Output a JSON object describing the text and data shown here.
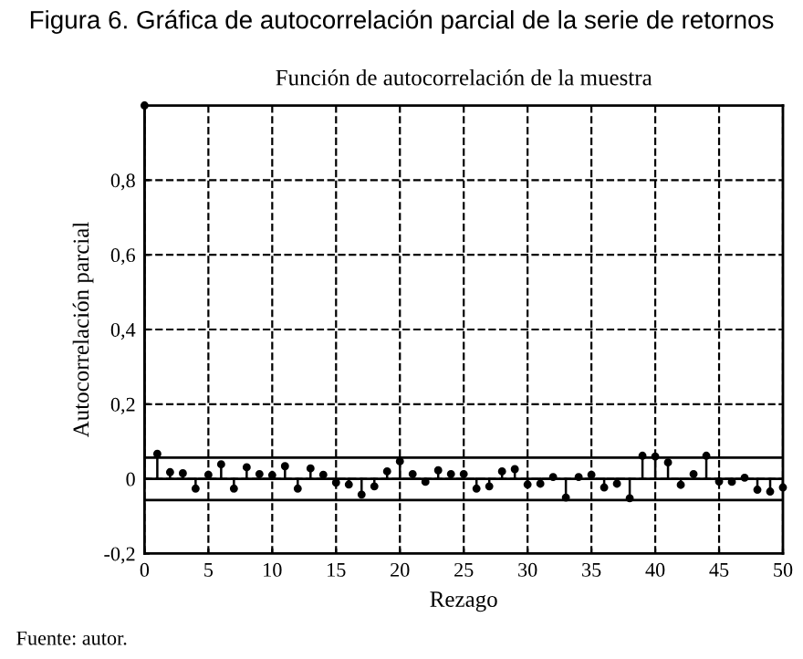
{
  "chart_data": {
    "type": "lollipop",
    "title": "Figura 6. Gráfica de autocorrelación parcial de la serie de retornos",
    "subtitle": "Función de autocorrelación de la muestra",
    "xlabel": "Rezago",
    "ylabel": "Autocorrelación parcial",
    "x": [
      0,
      1,
      2,
      3,
      4,
      5,
      6,
      7,
      8,
      9,
      10,
      11,
      12,
      13,
      14,
      15,
      16,
      17,
      18,
      19,
      20,
      21,
      22,
      23,
      24,
      25,
      26,
      27,
      28,
      29,
      30,
      31,
      32,
      33,
      34,
      35,
      36,
      37,
      38,
      39,
      40,
      41,
      42,
      43,
      44,
      45,
      46,
      47,
      48,
      49,
      50
    ],
    "values": [
      1,
      0.067,
      0.018,
      0.015,
      -0.026,
      0.011,
      0.039,
      -0.026,
      0.031,
      0.013,
      0.01,
      0.034,
      -0.026,
      0.028,
      0.011,
      -0.01,
      -0.015,
      -0.042,
      -0.02,
      0.02,
      0.047,
      0.013,
      -0.008,
      0.023,
      0.013,
      0.013,
      -0.026,
      -0.02,
      0.02,
      0.026,
      -0.015,
      -0.013,
      0.005,
      -0.05,
      0.005,
      0.011,
      -0.023,
      -0.013,
      -0.052,
      0.062,
      0.06,
      0.044,
      -0.016,
      0.013,
      0.062,
      -0.007,
      -0.008,
      0.003,
      -0.029,
      -0.034,
      -0.023
    ],
    "color": "#000000",
    "marker": "circle",
    "xlim": [
      0,
      50
    ],
    "xticks": [
      0,
      5,
      10,
      15,
      20,
      25,
      30,
      35,
      40,
      45,
      50
    ],
    "ylim": [
      -0.2,
      1
    ],
    "yticks": [
      {
        "value": -0.2,
        "label": "-0,2"
      },
      {
        "value": 0,
        "label": "0"
      },
      {
        "value": 0.2,
        "label": "0,2"
      },
      {
        "value": 0.4,
        "label": "0,4"
      },
      {
        "value": 0.6,
        "label": "0,6"
      },
      {
        "value": 0.8,
        "label": "0,8"
      }
    ],
    "grid": true,
    "ref_lines": [
      {
        "axis": "y",
        "value": 0,
        "color": "#000000",
        "line_style": "solid"
      },
      {
        "axis": "y",
        "value": 0.057,
        "color": "#000000",
        "line_style": "solid"
      },
      {
        "axis": "y",
        "value": -0.057,
        "color": "#000000",
        "line_style": "solid"
      }
    ],
    "annotations": [
      "Fuente: autor."
    ]
  }
}
